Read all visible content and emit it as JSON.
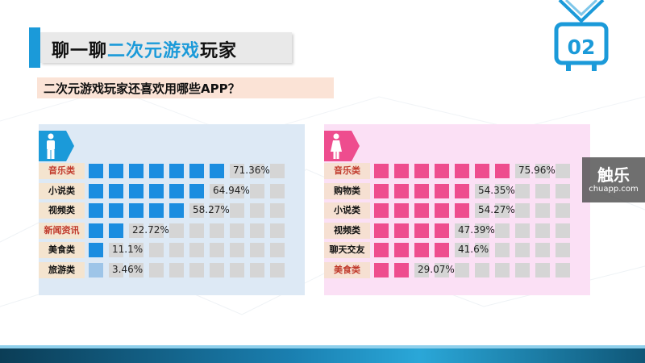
{
  "header": {
    "title_pre": "聊一聊",
    "title_highlight": "二次元游戏",
    "title_post": "玩家",
    "subtitle": "二次元游戏玩家还喜欢用哪些APP？",
    "badge": "02"
  },
  "colors": {
    "male_fill": "#1b8de0",
    "male_light": "#9ec5e8",
    "female_fill": "#ee4d8e",
    "empty": "#d5d5d5",
    "male_label_bg": "#f4e4cf",
    "female_label_bg": "#f6e0d2",
    "accent": "#1b9ad9"
  },
  "icons": {
    "male": "male-person-icon",
    "female": "female-person-icon",
    "tv": "tv-icon"
  },
  "watermark": {
    "main": "触乐",
    "sub": "chuapp.com"
  },
  "chart_data": [
    {
      "type": "bar",
      "orientation": "horizontal",
      "group": "male",
      "unit": "%",
      "categories": [
        "音乐类",
        "小说类",
        "视频类",
        "新闻资讯",
        "美食类",
        "旅游类"
      ],
      "labels": [
        "71.36%",
        "64.94%",
        "58.27%",
        "22.72%",
        "11.1%",
        "3.46%"
      ],
      "values": [
        71.36,
        64.94,
        58.27,
        22.72,
        11.1,
        3.46
      ],
      "xlim": [
        0,
        100
      ]
    },
    {
      "type": "bar",
      "orientation": "horizontal",
      "group": "female",
      "unit": "%",
      "categories": [
        "音乐类",
        "购物类",
        "小说类",
        "视频类",
        "聊天交友",
        "美食类"
      ],
      "labels": [
        "75.96%",
        "54.35%",
        "54.27%",
        "47.39%",
        "41.6%",
        "29.07%"
      ],
      "values": [
        75.96,
        54.35,
        54.27,
        47.39,
        41.6,
        29.07
      ],
      "xlim": [
        0,
        100
      ]
    }
  ]
}
